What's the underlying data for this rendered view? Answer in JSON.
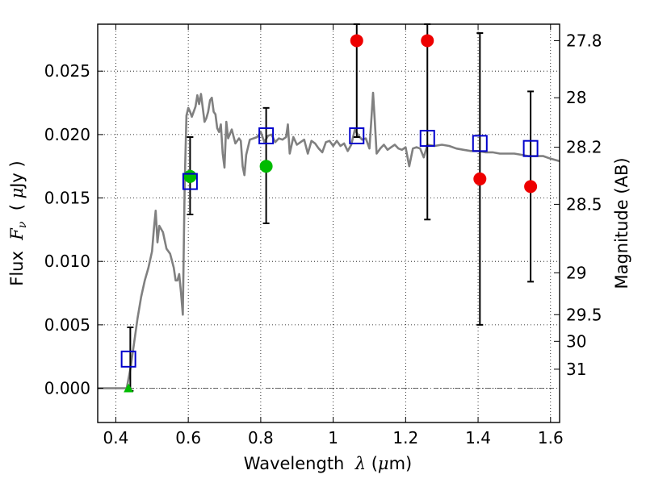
{
  "chart_data": {
    "type": "scatter",
    "x_label_parts": [
      "Wavelength  ",
      "λ",
      " (",
      "μ",
      "m)"
    ],
    "y_label_parts": [
      "Flux  ",
      "F",
      "ν",
      "  ( ",
      "μ",
      "Jy )"
    ],
    "y2_label": "Magnitude (AB)",
    "xlim": [
      0.35,
      1.625
    ],
    "ylim": [
      -0.0027,
      0.0287
    ],
    "grid": true,
    "x_ticks": [
      0.4,
      0.6,
      0.8,
      1.0,
      1.2,
      1.4,
      1.6
    ],
    "x_tick_labels": [
      "0.4",
      "0.6",
      "0.8",
      "1",
      "1.2",
      "1.4",
      "1.6"
    ],
    "y_ticks": [
      0.0,
      0.005,
      0.01,
      0.015,
      0.02,
      0.025
    ],
    "y_tick_labels": [
      "0.000",
      "0.005",
      "0.010",
      "0.015",
      "0.020",
      "0.025"
    ],
    "y2_ticks": [
      {
        "label": "27.8",
        "flux": 0.0274
      },
      {
        "label": "28",
        "flux": 0.0229
      },
      {
        "label": "28.2",
        "flux": 0.019
      },
      {
        "label": "28.5",
        "flux": 0.0145
      },
      {
        "label": "29",
        "flux": 0.0091
      },
      {
        "label": "29.5",
        "flux": 0.0058
      },
      {
        "label": "30",
        "flux": 0.0037
      },
      {
        "label": "31",
        "flux": 0.0015
      }
    ],
    "model_spectrum": {
      "color": "#808080",
      "x": [
        0.35,
        0.43,
        0.44,
        0.45,
        0.46,
        0.47,
        0.48,
        0.49,
        0.5,
        0.505,
        0.51,
        0.515,
        0.52,
        0.53,
        0.54,
        0.55,
        0.56,
        0.565,
        0.57,
        0.575,
        0.58,
        0.585,
        0.59,
        0.595,
        0.6,
        0.605,
        0.61,
        0.62,
        0.625,
        0.63,
        0.635,
        0.64,
        0.645,
        0.65,
        0.655,
        0.66,
        0.665,
        0.67,
        0.675,
        0.68,
        0.685,
        0.69,
        0.695,
        0.7,
        0.705,
        0.71,
        0.72,
        0.73,
        0.74,
        0.745,
        0.75,
        0.755,
        0.76,
        0.77,
        0.78,
        0.79,
        0.8,
        0.81,
        0.82,
        0.83,
        0.84,
        0.85,
        0.86,
        0.87,
        0.875,
        0.88,
        0.89,
        0.9,
        0.91,
        0.92,
        0.93,
        0.94,
        0.95,
        0.96,
        0.97,
        0.98,
        0.99,
        1.0,
        1.01,
        1.02,
        1.03,
        1.04,
        1.05,
        1.06,
        1.07,
        1.08,
        1.09,
        1.1,
        1.105,
        1.11,
        1.115,
        1.12,
        1.13,
        1.14,
        1.15,
        1.16,
        1.17,
        1.18,
        1.19,
        1.2,
        1.21,
        1.22,
        1.23,
        1.24,
        1.25,
        1.26,
        1.28,
        1.3,
        1.32,
        1.34,
        1.36,
        1.38,
        1.4,
        1.42,
        1.44,
        1.46,
        1.48,
        1.5,
        1.52,
        1.54,
        1.56,
        1.58,
        1.6,
        1.625
      ],
      "y": [
        0.0,
        0.0,
        0.0015,
        0.0035,
        0.0055,
        0.0072,
        0.0085,
        0.0095,
        0.0108,
        0.0125,
        0.014,
        0.0115,
        0.0128,
        0.0123,
        0.011,
        0.0106,
        0.0095,
        0.0085,
        0.0085,
        0.009,
        0.0075,
        0.0058,
        0.016,
        0.0215,
        0.0221,
        0.0218,
        0.0214,
        0.0222,
        0.0231,
        0.0224,
        0.0232,
        0.0221,
        0.021,
        0.0213,
        0.0218,
        0.0227,
        0.0229,
        0.0218,
        0.0216,
        0.0205,
        0.0202,
        0.0208,
        0.0185,
        0.0174,
        0.021,
        0.0197,
        0.0204,
        0.0193,
        0.0197,
        0.0195,
        0.0175,
        0.0168,
        0.0184,
        0.0196,
        0.0197,
        0.0198,
        0.0202,
        0.0194,
        0.0199,
        0.02,
        0.0194,
        0.0197,
        0.0196,
        0.0198,
        0.0208,
        0.0185,
        0.0198,
        0.0192,
        0.0194,
        0.0196,
        0.0185,
        0.0195,
        0.0193,
        0.0189,
        0.0186,
        0.0194,
        0.0195,
        0.0191,
        0.0195,
        0.0191,
        0.0193,
        0.0187,
        0.0192,
        0.0204,
        0.0199,
        0.0196,
        0.0197,
        0.0189,
        0.021,
        0.0233,
        0.021,
        0.0185,
        0.0189,
        0.0192,
        0.0188,
        0.019,
        0.0192,
        0.0189,
        0.0188,
        0.019,
        0.0175,
        0.0189,
        0.019,
        0.0189,
        0.0182,
        0.0192,
        0.0191,
        0.0192,
        0.0191,
        0.0189,
        0.0188,
        0.0187,
        0.0187,
        0.0186,
        0.0186,
        0.0185,
        0.0185,
        0.0185,
        0.0184,
        0.0183,
        0.0183,
        0.0183,
        0.0181,
        0.0179
      ]
    },
    "photometry_model_boxes": {
      "color": "#0000cc",
      "marker": "square",
      "x": [
        0.435,
        0.605,
        0.815,
        1.065,
        1.26,
        1.405,
        1.545
      ],
      "y": [
        0.0023,
        0.0163,
        0.0199,
        0.0199,
        0.0197,
        0.0193,
        0.0189
      ]
    },
    "error_bars": [
      {
        "x": 0.44,
        "low": -0.0002,
        "high": 0.0048
      },
      {
        "x": 0.605,
        "low": 0.0137,
        "high": 0.0198
      },
      {
        "x": 0.815,
        "low": 0.013,
        "high": 0.0221
      },
      {
        "x": 1.065,
        "low": 0.0198,
        "high": 0.0287
      },
      {
        "x": 1.26,
        "low": 0.0133,
        "high": 0.0287
      },
      {
        "x": 1.405,
        "low": 0.005,
        "high": 0.028
      },
      {
        "x": 1.545,
        "low": 0.0084,
        "high": 0.0234
      }
    ],
    "detections": {
      "color": "#00bb00",
      "marker": "circle",
      "x": [
        0.605,
        0.815
      ],
      "y": [
        0.0167,
        0.0175
      ]
    },
    "upper_limit": {
      "color": "#00bb00",
      "marker": "triangle",
      "x": [
        0.435
      ],
      "y": [
        0.0
      ]
    },
    "low_significance": {
      "color": "#ee0000",
      "marker": "circle",
      "x": [
        1.065,
        1.26,
        1.405,
        1.545
      ],
      "y": [
        0.0274,
        0.0274,
        0.0165,
        0.0159
      ]
    },
    "zero_line": {
      "y": 0.0,
      "style": "dash-dot"
    }
  }
}
